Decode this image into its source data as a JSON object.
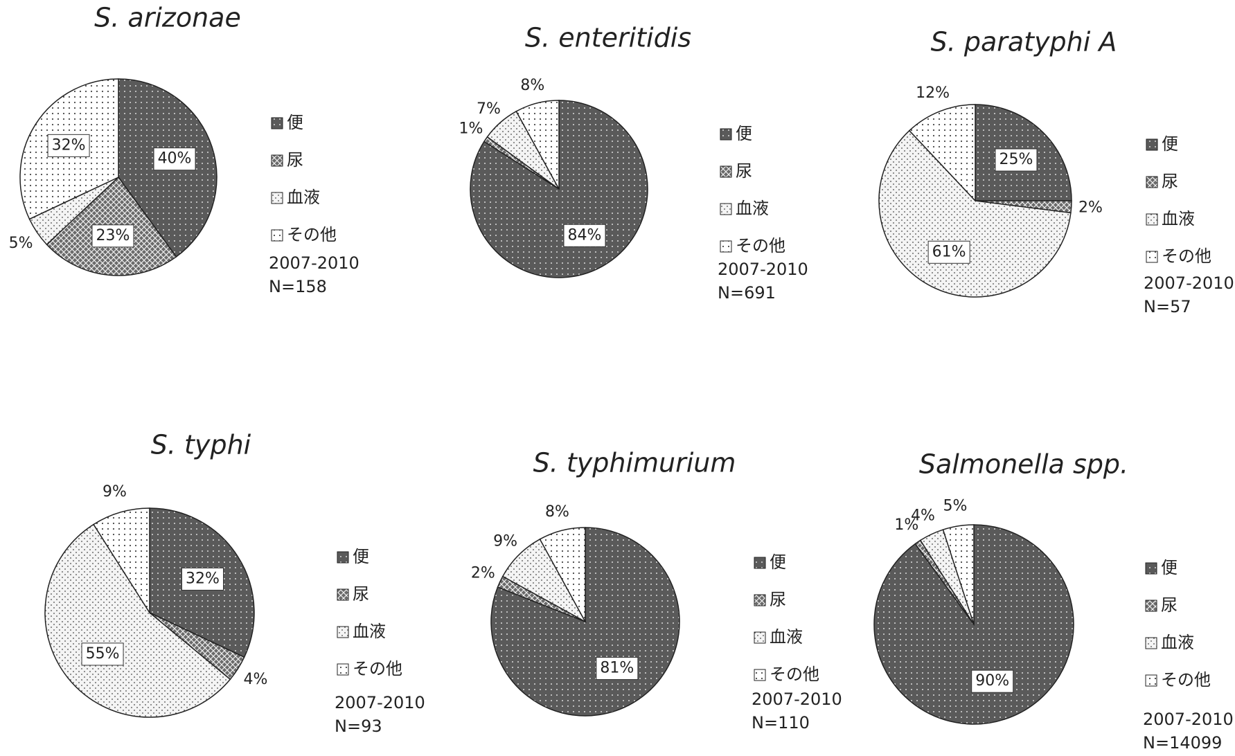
{
  "chart_data": [
    {
      "type": "pie",
      "title": "S. arizonae",
      "categories": [
        "便",
        "尿",
        "血液",
        "その他"
      ],
      "values": [
        40,
        23,
        5,
        32
      ],
      "value_labels": [
        "40%",
        "23%",
        "5%",
        "32%"
      ],
      "colors": [
        "#5a5a5a",
        "#6a6a6a",
        "#f4f4f4",
        "#ffffff"
      ],
      "annotations": [
        "2007-2010",
        "N=158"
      ]
    },
    {
      "type": "pie",
      "title": "S. enteritidis",
      "categories": [
        "便",
        "尿",
        "血液",
        "その他"
      ],
      "values": [
        84,
        1,
        7,
        8
      ],
      "value_labels": [
        "84%",
        "1%",
        "7%",
        "8%"
      ],
      "colors": [
        "#5a5a5a",
        "#6a6a6a",
        "#f4f4f4",
        "#ffffff"
      ],
      "annotations": [
        "2007-2010",
        "N=691"
      ]
    },
    {
      "type": "pie",
      "title": "S. paratyphi A",
      "categories": [
        "便",
        "尿",
        "血液",
        "その他"
      ],
      "values": [
        25,
        2,
        61,
        12
      ],
      "value_labels": [
        "25%",
        "2%",
        "61%",
        "12%"
      ],
      "colors": [
        "#5a5a5a",
        "#6a6a6a",
        "#f4f4f4",
        "#ffffff"
      ],
      "annotations": [
        "2007-2010",
        "N=57"
      ]
    },
    {
      "type": "pie",
      "title": "S. typhi",
      "categories": [
        "便",
        "尿",
        "血液",
        "その他"
      ],
      "values": [
        32,
        4,
        55,
        9
      ],
      "value_labels": [
        "32%",
        "4%",
        "55%",
        "9%"
      ],
      "colors": [
        "#5a5a5a",
        "#6a6a6a",
        "#f4f4f4",
        "#ffffff"
      ],
      "annotations": [
        "2007-2010",
        "N=93"
      ]
    },
    {
      "type": "pie",
      "title": "S. typhimurium",
      "categories": [
        "便",
        "尿",
        "血液",
        "その他"
      ],
      "values": [
        81,
        2,
        9,
        8
      ],
      "value_labels": [
        "81%",
        "2%",
        "9%",
        "8%"
      ],
      "colors": [
        "#5a5a5a",
        "#6a6a6a",
        "#f4f4f4",
        "#ffffff"
      ],
      "annotations": [
        "2007-2010",
        "N=110"
      ]
    },
    {
      "type": "pie",
      "title": "Salmonella spp.",
      "categories": [
        "便",
        "尿",
        "血液",
        "その他"
      ],
      "values": [
        90,
        1,
        4,
        5
      ],
      "value_labels": [
        "90%",
        "1%",
        "4%",
        "5%"
      ],
      "colors": [
        "#5a5a5a",
        "#6a6a6a",
        "#f4f4f4",
        "#ffffff"
      ],
      "annotations": [
        "2007-2010",
        "N=14099"
      ]
    }
  ]
}
